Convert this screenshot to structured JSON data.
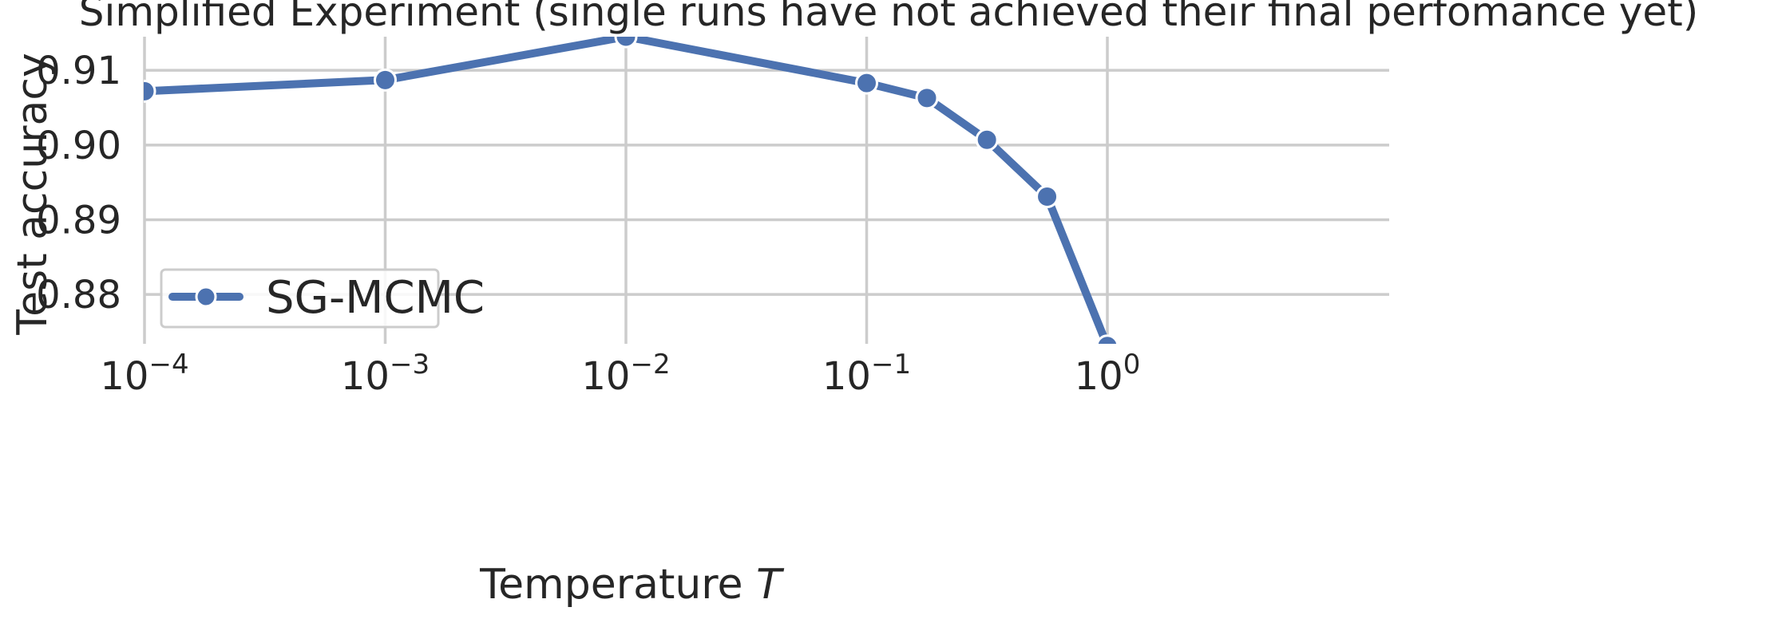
{
  "chart_data": {
    "type": "line",
    "title": "Simplified Experiment (single runs have not achieved their final perfomance yet)",
    "xlabel": "Temperature",
    "xlabel_var": "T",
    "ylabel": "Test accuracy",
    "xscale": "log",
    "xlim": [
      0.0001,
      4
    ],
    "ylim": [
      0.8734,
      0.9145
    ],
    "xticks": [
      {
        "value": 0.0001,
        "base": "10",
        "exp": "−4"
      },
      {
        "value": 0.001,
        "base": "10",
        "exp": "−3"
      },
      {
        "value": 0.01,
        "base": "10",
        "exp": "−2"
      },
      {
        "value": 0.1,
        "base": "10",
        "exp": "−1"
      },
      {
        "value": 1,
        "base": "10",
        "exp": "0"
      }
    ],
    "yticks": [
      {
        "value": 0.88,
        "label": "0.88"
      },
      {
        "value": 0.89,
        "label": "0.89"
      },
      {
        "value": 0.9,
        "label": "0.90"
      },
      {
        "value": 0.91,
        "label": "0.91"
      }
    ],
    "grid": true,
    "legend_position": "lower-left",
    "series": [
      {
        "name": "SG-MCMC",
        "color": "#4c72b0",
        "marker": "circle",
        "x": [
          0.0001,
          0.001,
          0.01,
          0.1,
          0.178,
          0.316,
          0.562,
          1.0
        ],
        "y": [
          0.9072,
          0.9087,
          0.9145,
          0.9083,
          0.9063,
          0.9007,
          0.8931,
          0.8731
        ]
      }
    ]
  }
}
